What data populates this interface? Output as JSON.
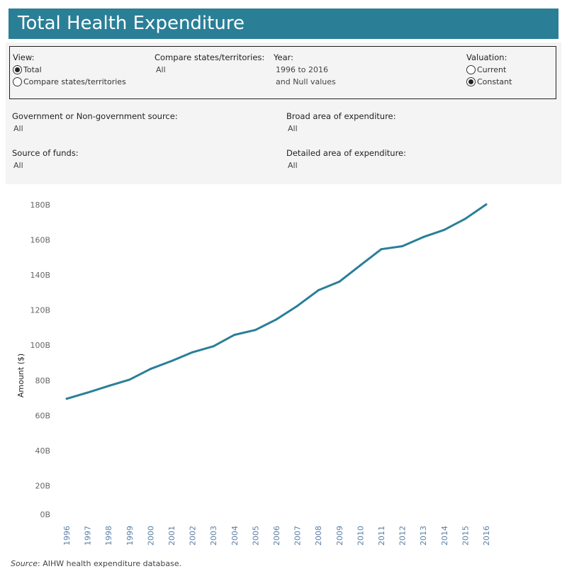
{
  "header": {
    "title": "Total Health Expenditure"
  },
  "filters": {
    "view": {
      "label": "View:",
      "options": [
        "Total",
        "Compare states/territories"
      ],
      "selected": 0
    },
    "compare": {
      "label": "Compare states/territories:",
      "value": "All"
    },
    "year": {
      "label": "Year:",
      "value": "1996 to 2016",
      "value2": "and Null values"
    },
    "valuation": {
      "label": "Valuation:",
      "options": [
        "Current",
        "Constant"
      ],
      "selected": 1
    },
    "gov": {
      "label": "Government or Non-government source:",
      "value": "All"
    },
    "broad": {
      "label": "Broad area of expenditure:",
      "value": "All"
    },
    "funds": {
      "label": "Source of funds:",
      "value": "All"
    },
    "detailed": {
      "label": "Detailed area of expenditure:",
      "value": "All"
    }
  },
  "chart_data": {
    "type": "line",
    "ylabel": "Amount ($)",
    "ylim": [
      0,
      180
    ],
    "yticks": [
      "0B",
      "20B",
      "40B",
      "60B",
      "80B",
      "100B",
      "120B",
      "140B",
      "160B",
      "180B"
    ],
    "x": [
      "1996",
      "1997",
      "1998",
      "1999",
      "2000",
      "2001",
      "2002",
      "2003",
      "2004",
      "2005",
      "2006",
      "2007",
      "2008",
      "2009",
      "2010",
      "2011",
      "2012",
      "2013",
      "2014",
      "2015",
      "2016"
    ],
    "values": [
      69.5,
      73,
      76.8,
      80.4,
      86.5,
      91,
      96,
      99.4,
      105.9,
      108.7,
      114.7,
      122.4,
      131.3,
      136.2,
      145.5,
      154.7,
      156.4,
      161.6,
      165.7,
      172,
      180.2
    ],
    "color": "#2a7f97",
    "grid": false
  },
  "footer": {
    "source_label": "Source",
    "source_text": ": AIHW health expenditure database."
  }
}
